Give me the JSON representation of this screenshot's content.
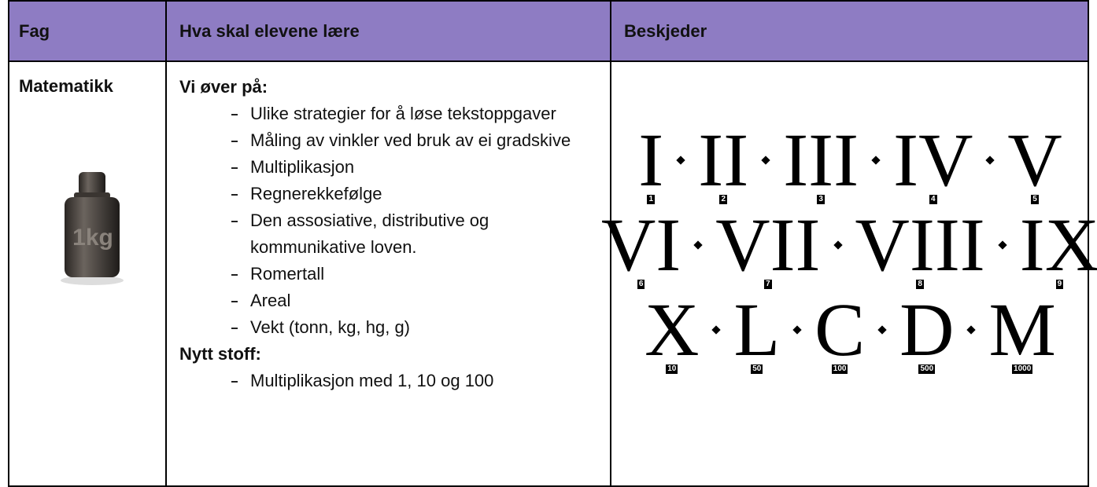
{
  "table": {
    "header": [
      "Fag",
      "Hva skal elevene lære",
      "Beskjeder"
    ],
    "rows": [
      {
        "subject": "Matematikk",
        "weight_label": "1kg",
        "sections": [
          {
            "heading": "Vi øver på:",
            "items": [
              "Ulike strategier for å løse tekstoppgaver",
              "Måling av vinkler ved bruk av ei gradskive",
              "Multiplikasjon",
              "Regnerekkefølge",
              "Den assosiative, distributive og kommunikative loven.",
              "Romertall",
              "Areal",
              "Vekt (tonn, kg, hg, g)"
            ]
          },
          {
            "heading": "Nytt stoff:",
            "items": [
              "Multiplikasjon med 1, 10 og 100"
            ]
          }
        ],
        "roman_numerals": [
          [
            {
              "numeral": "I",
              "label": "1"
            },
            {
              "numeral": "II",
              "label": "2"
            },
            {
              "numeral": "III",
              "label": "3"
            },
            {
              "numeral": "IV",
              "label": "4"
            },
            {
              "numeral": "V",
              "label": "5"
            }
          ],
          [
            {
              "numeral": "VI",
              "label": "6"
            },
            {
              "numeral": "VII",
              "label": "7"
            },
            {
              "numeral": "VIII",
              "label": "8"
            },
            {
              "numeral": "IX",
              "label": "9"
            }
          ],
          [
            {
              "numeral": "X",
              "label": "10"
            },
            {
              "numeral": "L",
              "label": "50"
            },
            {
              "numeral": "C",
              "label": "100"
            },
            {
              "numeral": "D",
              "label": "500"
            },
            {
              "numeral": "M",
              "label": "1000"
            }
          ]
        ]
      }
    ]
  }
}
